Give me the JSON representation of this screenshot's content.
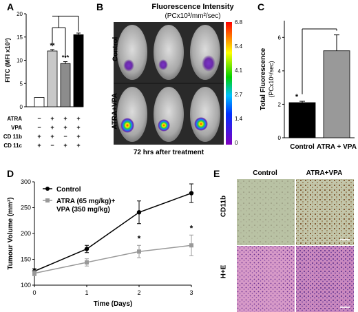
{
  "panels": {
    "A": {
      "letter": "A"
    },
    "B": {
      "letter": "B",
      "title": "Fluorescence Intensity",
      "unit": "(PCx10³/mm²/sec)",
      "row_labels": [
        "Control",
        "ATRA+VPA"
      ],
      "caption": "72 hrs after treatment",
      "colorbar_ticks": [
        "6.8",
        "5.4",
        "4.1",
        "2.7",
        "1.4",
        "0"
      ]
    },
    "C": {
      "letter": "C"
    },
    "D": {
      "letter": "D"
    },
    "E": {
      "letter": "E",
      "col_labels": [
        "Control",
        "ATRA+VPA"
      ],
      "row_labels": [
        "CD11b",
        "H+E"
      ]
    }
  },
  "chart_data": [
    {
      "id": "A",
      "type": "bar",
      "ylabel": "FITC (MFI x10³)",
      "ylim": [
        0,
        20
      ],
      "yticks": [
        0,
        5,
        10,
        15,
        20
      ],
      "values": [
        2.0,
        12.0,
        9.3,
        15.5
      ],
      "errors": [
        0,
        0.3,
        0.4,
        0.35
      ],
      "bar_colors": [
        "#ffffff",
        "#c8c8c8",
        "#8c8c8c",
        "#000000"
      ],
      "significance": [
        "",
        "**",
        "***",
        ""
      ],
      "condition_rows": [
        {
          "label": "ATRA",
          "marks": [
            "−",
            "+",
            "+",
            "+"
          ]
        },
        {
          "label": "VPA",
          "marks": [
            "−",
            "+",
            "+",
            "+"
          ]
        },
        {
          "label": "CD 11b",
          "marks": [
            "+",
            "+",
            "−",
            "+"
          ]
        },
        {
          "label": "CD 11c",
          "marks": [
            "+",
            "−",
            "+",
            "+"
          ]
        }
      ]
    },
    {
      "id": "C",
      "type": "bar",
      "ylabel": "Total Fluorescence",
      "ylabel2": "(PCx10⁶/sec)",
      "categories": [
        "Control",
        "ATRA + VPA"
      ],
      "values": [
        2.1,
        5.2
      ],
      "errors": [
        0.08,
        0.95
      ],
      "ylim": [
        0,
        7
      ],
      "yticks": [
        0,
        2,
        4,
        6
      ],
      "bar_colors": [
        "#000000",
        "#999999"
      ],
      "significance": [
        "*",
        ""
      ]
    },
    {
      "id": "D",
      "type": "line",
      "xlabel": "Time (Days)",
      "ylabel": "Tumour Volume (mm³)",
      "x": [
        0,
        1,
        2,
        3
      ],
      "xlim": [
        0,
        3
      ],
      "ylim": [
        100,
        300
      ],
      "yticks": [
        100,
        150,
        200,
        250,
        300
      ],
      "xticks": [
        0,
        1,
        2,
        3
      ],
      "series": [
        {
          "name": "Control",
          "values": [
            127,
            170,
            241,
            278
          ],
          "errors": [
            5,
            7,
            22,
            18
          ],
          "color": "#000000",
          "marker": "circle"
        },
        {
          "name_line1": "ATRA (65 mg/kg)+",
          "name_line2": "VPA (350 mg/kg)",
          "values": [
            123,
            144,
            165,
            177
          ],
          "errors": [
            5,
            7,
            12,
            20
          ],
          "color": "#999999",
          "marker": "square"
        }
      ],
      "significance": [
        {
          "x": 2,
          "label": "*"
        },
        {
          "x": 3,
          "label": "*"
        }
      ]
    }
  ]
}
